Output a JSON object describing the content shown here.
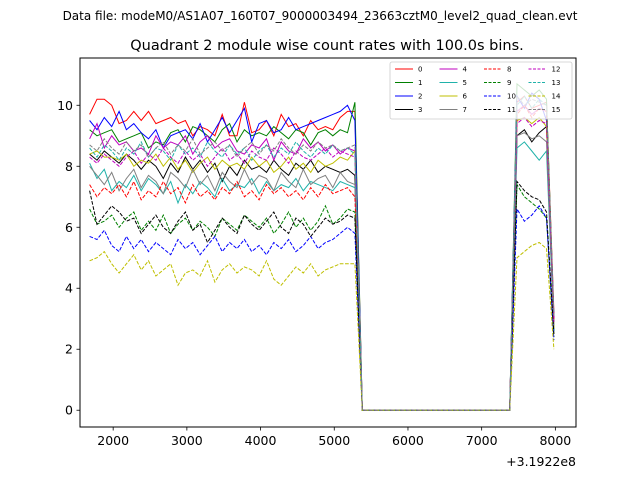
{
  "chart_data": {
    "type": "line",
    "suptitle": "Data file: modeM0/AS1A07_160T07_9000003494_23663cztM0_level2_quad_clean.evt",
    "title": "Quadrant 2 module wise count rates with 100.0s bins.",
    "xlabel": "",
    "ylabel": "",
    "x_offset_label": "+3.1922e8",
    "xlim": [
      1550,
      8280
    ],
    "ylim": [
      -0.55,
      11.55
    ],
    "xticks": [
      2000,
      3000,
      4000,
      5000,
      6000,
      7000,
      8000
    ],
    "yticks": [
      0,
      2,
      4,
      6,
      8,
      10
    ],
    "x": [
      1680,
      1780,
      1880,
      1980,
      2080,
      2180,
      2280,
      2380,
      2480,
      2580,
      2680,
      2780,
      2880,
      2980,
      3080,
      3180,
      3280,
      3380,
      3480,
      3580,
      3680,
      3780,
      3880,
      3980,
      4080,
      4180,
      4280,
      4380,
      4480,
      4580,
      4680,
      4780,
      4880,
      4980,
      5080,
      5180,
      5280,
      5380,
      5480,
      5580,
      5680,
      5780,
      5880,
      5980,
      6080,
      6180,
      6280,
      6380,
      6480,
      6580,
      6680,
      6780,
      6880,
      6980,
      7080,
      7180,
      7280,
      7380,
      7480,
      7580,
      7680,
      7780,
      7880,
      7980
    ],
    "legend_location": "upper right",
    "series": [
      {
        "name": "0",
        "color": "#ff0000",
        "dash": "solid",
        "values": [
          9.7,
          10.2,
          10.2,
          10.0,
          9.4,
          9.5,
          9.8,
          9.5,
          9.8,
          9.4,
          9.5,
          9.6,
          9.4,
          9.5,
          9.0,
          9.3,
          9.2,
          9.0,
          9.7,
          9.0,
          9.0,
          10.1,
          9.1,
          9.2,
          9.5,
          9.0,
          9.7,
          9.3,
          9.4,
          9.0,
          9.5,
          9.2,
          9.3,
          9.2,
          9.6,
          9.8,
          9.8,
          0.0,
          0.0,
          0.0,
          0.0,
          0.0,
          0.0,
          0.0,
          0.0,
          0.0,
          0.0,
          0.0,
          0.0,
          0.0,
          0.0,
          0.0,
          0.0,
          0.0,
          0.0,
          0.0,
          0.0,
          0.0,
          10.1,
          10.3,
          9.9,
          10.0,
          10.1,
          3.2
        ]
      },
      {
        "name": "1",
        "color": "#008000",
        "dash": "solid",
        "values": [
          9.2,
          9.0,
          9.1,
          9.2,
          8.8,
          8.9,
          9.0,
          9.1,
          8.6,
          8.8,
          8.7,
          9.1,
          9.2,
          8.8,
          9.3,
          9.2,
          9.0,
          8.8,
          9.2,
          9.4,
          8.8,
          9.2,
          9.0,
          9.1,
          9.0,
          9.3,
          9.1,
          8.9,
          9.2,
          9.1,
          8.7,
          9.1,
          9.2,
          9.0,
          9.2,
          9.1,
          10.1,
          0.0,
          0.0,
          0.0,
          0.0,
          0.0,
          0.0,
          0.0,
          0.0,
          0.0,
          0.0,
          0.0,
          0.0,
          0.0,
          0.0,
          0.0,
          0.0,
          0.0,
          0.0,
          0.0,
          0.0,
          0.0,
          10.7,
          10.5,
          10.3,
          10.5,
          10.2,
          2.9
        ]
      },
      {
        "name": "2",
        "color": "#0000ff",
        "dash": "solid",
        "values": [
          9.5,
          9.2,
          9.6,
          9.3,
          9.8,
          9.2,
          9.4,
          9.1,
          8.9,
          9.2,
          8.6,
          9.0,
          9.1,
          9.2,
          8.9,
          9.4,
          8.8,
          9.2,
          9.6,
          9.1,
          9.5,
          9.9,
          8.8,
          9.4,
          9.5,
          9.1,
          9.2,
          9.6,
          9.2,
          9.3,
          9.4,
          9.5,
          9.6,
          9.7,
          9.8,
          10.0,
          9.5,
          0.0,
          0.0,
          0.0,
          0.0,
          0.0,
          0.0,
          0.0,
          0.0,
          0.0,
          0.0,
          0.0,
          0.0,
          0.0,
          0.0,
          0.0,
          0.0,
          0.0,
          0.0,
          0.0,
          0.0,
          0.0,
          10.3,
          9.9,
          10.4,
          10.2,
          9.5,
          3.0
        ]
      },
      {
        "name": "3",
        "color": "#000000",
        "dash": "solid",
        "values": [
          8.4,
          8.2,
          8.5,
          8.3,
          8.1,
          8.4,
          8.2,
          7.9,
          8.2,
          8.0,
          7.6,
          8.1,
          7.8,
          8.3,
          7.9,
          8.2,
          7.8,
          8.1,
          7.5,
          8.0,
          7.7,
          8.2,
          7.9,
          8.0,
          7.8,
          8.2,
          7.9,
          7.7,
          8.1,
          7.9,
          8.2,
          7.8,
          8.0,
          7.9,
          7.8,
          7.9,
          7.7,
          0.0,
          0.0,
          0.0,
          0.0,
          0.0,
          0.0,
          0.0,
          0.0,
          0.0,
          0.0,
          0.0,
          0.0,
          0.0,
          0.0,
          0.0,
          0.0,
          0.0,
          0.0,
          0.0,
          0.0,
          0.0,
          9.0,
          9.2,
          8.8,
          9.1,
          9.3,
          2.6
        ]
      },
      {
        "name": "4",
        "color": "#bf00bf",
        "dash": "solid",
        "values": [
          8.9,
          9.4,
          8.6,
          9.0,
          8.7,
          8.8,
          8.5,
          8.6,
          8.4,
          9.0,
          8.6,
          8.8,
          8.7,
          9.0,
          8.4,
          8.8,
          9.0,
          8.6,
          8.8,
          8.9,
          8.5,
          8.4,
          8.7,
          8.6,
          8.9,
          8.2,
          8.8,
          8.5,
          8.4,
          8.9,
          8.6,
          8.8,
          8.5,
          8.7,
          8.4,
          8.6,
          8.5,
          0.0,
          0.0,
          0.0,
          0.0,
          0.0,
          0.0,
          0.0,
          0.0,
          0.0,
          0.0,
          0.0,
          0.0,
          0.0,
          0.0,
          0.0,
          0.0,
          0.0,
          0.0,
          0.0,
          0.0,
          0.0,
          9.8,
          10.0,
          9.7,
          9.9,
          9.8,
          3.0
        ]
      },
      {
        "name": "5",
        "color": "#20b2aa",
        "dash": "solid",
        "values": [
          8.1,
          7.6,
          7.9,
          7.2,
          7.5,
          7.3,
          7.7,
          7.2,
          7.6,
          7.4,
          7.1,
          7.5,
          6.8,
          7.4,
          7.1,
          7.5,
          7.3,
          7.0,
          7.6,
          7.2,
          7.4,
          7.3,
          7.6,
          7.1,
          7.5,
          7.2,
          7.4,
          7.3,
          7.6,
          7.2,
          7.5,
          7.4,
          7.3,
          7.2,
          7.5,
          7.4,
          7.3,
          0.0,
          0.0,
          0.0,
          0.0,
          0.0,
          0.0,
          0.0,
          0.0,
          0.0,
          0.0,
          0.0,
          0.0,
          0.0,
          0.0,
          0.0,
          0.0,
          0.0,
          0.0,
          0.0,
          0.0,
          0.0,
          8.6,
          8.8,
          8.5,
          8.2,
          8.5,
          2.6
        ]
      },
      {
        "name": "6",
        "color": "#bfbf00",
        "dash": "solid",
        "values": [
          8.4,
          8.5,
          8.3,
          8.3,
          8.2,
          8.4,
          8.0,
          8.2,
          8.1,
          8.4,
          8.0,
          8.3,
          7.9,
          8.2,
          7.8,
          8.1,
          8.3,
          7.9,
          8.2,
          8.0,
          8.1,
          7.9,
          8.3,
          8.0,
          8.2,
          7.8,
          8.0,
          8.3,
          7.9,
          8.1,
          7.8,
          8.2,
          8.0,
          8.1,
          8.3,
          8.2,
          8.5,
          0.0,
          0.0,
          0.0,
          0.0,
          0.0,
          0.0,
          0.0,
          0.0,
          0.0,
          0.0,
          0.0,
          0.0,
          0.0,
          0.0,
          0.0,
          0.0,
          0.0,
          0.0,
          0.0,
          0.0,
          0.0,
          9.5,
          9.6,
          9.4,
          9.6,
          9.3,
          2.7
        ]
      },
      {
        "name": "7",
        "color": "#808080",
        "dash": "solid",
        "values": [
          8.0,
          7.7,
          7.4,
          7.8,
          7.2,
          7.6,
          7.9,
          7.3,
          7.7,
          7.5,
          7.1,
          7.8,
          7.6,
          7.3,
          7.9,
          7.4,
          7.7,
          7.2,
          7.8,
          7.5,
          7.3,
          7.9,
          7.4,
          7.7,
          7.6,
          7.2,
          7.8,
          7.5,
          7.3,
          7.9,
          7.4,
          7.6,
          7.7,
          7.3,
          7.8,
          7.5,
          7.4,
          0.0,
          0.0,
          0.0,
          0.0,
          0.0,
          0.0,
          0.0,
          0.0,
          0.0,
          0.0,
          0.0,
          0.0,
          0.0,
          0.0,
          0.0,
          0.0,
          0.0,
          0.0,
          0.0,
          0.0,
          0.0,
          9.0,
          9.1,
          8.9,
          9.0,
          8.8,
          2.8
        ]
      },
      {
        "name": "8",
        "color": "#ff0000",
        "dash": "dashed",
        "values": [
          7.4,
          7.0,
          7.3,
          7.1,
          7.4,
          7.0,
          7.5,
          6.9,
          7.2,
          7.0,
          7.5,
          7.1,
          7.3,
          6.8,
          7.4,
          7.0,
          7.2,
          6.9,
          7.3,
          7.1,
          7.5,
          7.0,
          7.2,
          6.9,
          7.4,
          7.1,
          7.3,
          7.0,
          7.2,
          6.9,
          7.3,
          7.0,
          7.4,
          7.1,
          7.2,
          7.3,
          7.0,
          0.0,
          0.0,
          0.0,
          0.0,
          0.0,
          0.0,
          0.0,
          0.0,
          0.0,
          0.0,
          0.0,
          0.0,
          0.0,
          0.0,
          0.0,
          0.0,
          0.0,
          0.0,
          0.0,
          0.0,
          0.0,
          9.7,
          10.0,
          9.6,
          9.9,
          9.8,
          3.0
        ]
      },
      {
        "name": "9",
        "color": "#008000",
        "dash": "dashed",
        "values": [
          6.6,
          6.1,
          6.2,
          6.4,
          6.0,
          6.3,
          6.5,
          5.9,
          6.2,
          5.9,
          6.4,
          5.8,
          6.1,
          6.3,
          5.9,
          6.2,
          6.0,
          5.7,
          6.3,
          6.1,
          5.9,
          6.4,
          6.2,
          6.0,
          6.3,
          5.8,
          6.1,
          6.5,
          6.0,
          6.3,
          5.9,
          6.2,
          6.7,
          6.1,
          6.3,
          6.6,
          6.5,
          0.0,
          0.0,
          0.0,
          0.0,
          0.0,
          0.0,
          0.0,
          0.0,
          0.0,
          0.0,
          0.0,
          0.0,
          0.0,
          0.0,
          0.0,
          0.0,
          0.0,
          0.0,
          0.0,
          0.0,
          0.0,
          7.4,
          7.0,
          6.8,
          6.6,
          6.3,
          2.4
        ]
      },
      {
        "name": "10",
        "color": "#0000ff",
        "dash": "dashed",
        "values": [
          5.7,
          5.6,
          5.9,
          5.4,
          5.2,
          5.7,
          5.3,
          5.6,
          5.2,
          5.5,
          5.3,
          5.1,
          5.6,
          5.3,
          5.5,
          5.1,
          5.4,
          5.7,
          5.2,
          5.5,
          5.3,
          5.6,
          5.2,
          5.4,
          5.1,
          5.5,
          5.3,
          5.6,
          5.2,
          5.4,
          5.7,
          5.3,
          5.5,
          5.6,
          5.8,
          6.0,
          5.8,
          0.0,
          0.0,
          0.0,
          0.0,
          0.0,
          0.0,
          0.0,
          0.0,
          0.0,
          0.0,
          0.0,
          0.0,
          0.0,
          0.0,
          0.0,
          0.0,
          0.0,
          0.0,
          0.0,
          0.0,
          0.0,
          6.6,
          6.2,
          6.4,
          6.7,
          6.3,
          2.3
        ]
      },
      {
        "name": "11",
        "color": "#000000",
        "dash": "dashed",
        "values": [
          7.2,
          6.1,
          6.4,
          6.7,
          6.5,
          6.2,
          6.3,
          5.8,
          6.1,
          6.4,
          6.0,
          5.8,
          6.2,
          6.5,
          5.9,
          6.1,
          5.5,
          5.9,
          6.3,
          6.0,
          5.8,
          6.4,
          6.1,
          5.9,
          6.2,
          6.5,
          6.0,
          5.8,
          6.3,
          6.1,
          5.7,
          6.0,
          6.3,
          6.1,
          6.2,
          6.4,
          6.3,
          0.0,
          0.0,
          0.0,
          0.0,
          0.0,
          0.0,
          0.0,
          0.0,
          0.0,
          0.0,
          0.0,
          0.0,
          0.0,
          0.0,
          0.0,
          0.0,
          0.0,
          0.0,
          0.0,
          0.0,
          0.0,
          7.5,
          7.2,
          7.0,
          6.9,
          6.5,
          2.5
        ]
      },
      {
        "name": "12",
        "color": "#bf00bf",
        "dash": "dashed",
        "values": [
          8.3,
          8.1,
          8.4,
          8.2,
          8.0,
          8.3,
          8.5,
          8.1,
          8.4,
          8.2,
          8.6,
          8.3,
          8.1,
          8.5,
          8.2,
          8.4,
          8.0,
          8.3,
          8.6,
          8.2,
          8.4,
          8.1,
          8.5,
          8.3,
          8.2,
          8.6,
          8.4,
          8.1,
          8.5,
          8.3,
          8.2,
          8.4,
          8.6,
          8.3,
          8.5,
          8.4,
          8.3,
          0.0,
          0.0,
          0.0,
          0.0,
          0.0,
          0.0,
          0.0,
          0.0,
          0.0,
          0.0,
          0.0,
          0.0,
          0.0,
          0.0,
          0.0,
          0.0,
          0.0,
          0.0,
          0.0,
          0.0,
          0.0,
          9.4,
          9.6,
          9.3,
          9.5,
          9.4,
          2.9
        ]
      },
      {
        "name": "13",
        "color": "#20b2aa",
        "dash": "dashed",
        "values": [
          8.6,
          8.3,
          8.7,
          8.5,
          8.2,
          8.6,
          8.4,
          8.8,
          8.3,
          8.6,
          8.5,
          8.2,
          8.7,
          8.4,
          8.6,
          8.3,
          8.8,
          8.5,
          8.3,
          8.7,
          8.4,
          8.6,
          8.2,
          8.5,
          8.7,
          8.3,
          8.6,
          8.4,
          8.8,
          8.5,
          8.3,
          8.6,
          8.4,
          8.7,
          8.5,
          8.6,
          8.4,
          0.0,
          0.0,
          0.0,
          0.0,
          0.0,
          0.0,
          0.0,
          0.0,
          0.0,
          0.0,
          0.0,
          0.0,
          0.0,
          0.0,
          0.0,
          0.0,
          0.0,
          0.0,
          0.0,
          0.0,
          0.0,
          10.0,
          10.3,
          9.9,
          10.2,
          10.0,
          3.1
        ]
      },
      {
        "name": "14",
        "color": "#bfbf00",
        "dash": "dashed",
        "values": [
          4.9,
          5.0,
          5.2,
          4.8,
          4.5,
          4.8,
          5.1,
          4.6,
          4.9,
          4.4,
          4.6,
          4.8,
          4.1,
          4.5,
          4.6,
          4.4,
          4.9,
          4.2,
          4.6,
          4.8,
          4.5,
          4.7,
          4.6,
          4.4,
          4.9,
          4.3,
          4.1,
          4.4,
          4.7,
          4.5,
          4.8,
          4.4,
          4.6,
          4.7,
          4.8,
          4.8,
          4.8,
          0.0,
          0.0,
          0.0,
          0.0,
          0.0,
          0.0,
          0.0,
          0.0,
          0.0,
          0.0,
          0.0,
          0.0,
          0.0,
          0.0,
          0.0,
          0.0,
          0.0,
          0.0,
          0.0,
          0.0,
          0.0,
          5.0,
          5.2,
          5.4,
          5.5,
          5.3,
          2.0
        ]
      },
      {
        "name": "15",
        "color": "#808080",
        "dash": "dashed",
        "values": [
          8.7,
          8.5,
          8.9,
          8.6,
          8.4,
          8.8,
          8.5,
          8.7,
          8.3,
          8.6,
          8.8,
          8.4,
          8.7,
          8.5,
          8.9,
          8.4,
          8.6,
          8.8,
          8.5,
          8.7,
          8.3,
          8.6,
          8.8,
          8.4,
          8.7,
          8.5,
          8.9,
          8.6,
          8.4,
          8.7,
          8.5,
          8.8,
          8.6,
          8.7,
          8.5,
          8.6,
          8.7,
          0.0,
          0.0,
          0.0,
          0.0,
          0.0,
          0.0,
          0.0,
          0.0,
          0.0,
          0.0,
          0.0,
          0.0,
          0.0,
          0.0,
          0.0,
          0.0,
          0.0,
          0.0,
          0.0,
          0.0,
          0.0,
          10.3,
          10.0,
          10.2,
          10.1,
          10.0,
          3.1
        ]
      }
    ]
  }
}
